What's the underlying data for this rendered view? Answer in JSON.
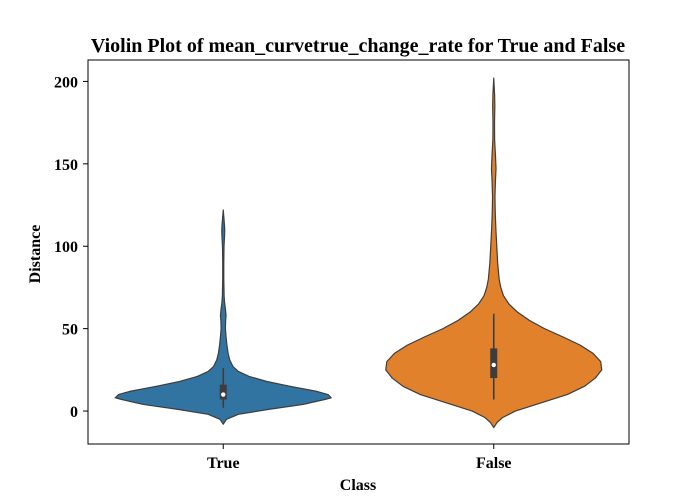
{
  "chart_data": {
    "type": "violin",
    "title": "Violin Plot of mean_curvetrue_change_rate for True and False",
    "xlabel": "Class",
    "ylabel": "Distance",
    "categories": [
      "True",
      "False"
    ],
    "ylim": [
      -20,
      213
    ],
    "yticks": [
      0,
      50,
      100,
      150,
      200
    ],
    "grid": false,
    "series": [
      {
        "name": "True",
        "color": "#3274a1",
        "min": 2,
        "q1": 7,
        "median": 10,
        "q3": 16,
        "max": 26,
        "density": [
          [
            -8,
            0.0
          ],
          [
            -5,
            0.03
          ],
          [
            -2,
            0.14
          ],
          [
            1,
            0.42
          ],
          [
            4,
            0.74
          ],
          [
            7,
            0.94
          ],
          [
            8,
            1.0
          ],
          [
            10,
            0.97
          ],
          [
            12,
            0.86
          ],
          [
            15,
            0.62
          ],
          [
            18,
            0.4
          ],
          [
            21,
            0.24
          ],
          [
            24,
            0.14
          ],
          [
            27,
            0.09
          ],
          [
            31,
            0.06
          ],
          [
            35,
            0.045
          ],
          [
            40,
            0.034
          ],
          [
            45,
            0.026
          ],
          [
            50,
            0.02
          ],
          [
            55,
            0.022
          ],
          [
            58,
            0.026
          ],
          [
            62,
            0.02
          ],
          [
            66,
            0.012
          ],
          [
            70,
            0.008
          ],
          [
            80,
            0.005
          ],
          [
            90,
            0.005
          ],
          [
            100,
            0.007
          ],
          [
            106,
            0.012
          ],
          [
            110,
            0.014
          ],
          [
            114,
            0.01
          ],
          [
            118,
            0.005
          ],
          [
            122,
            0.0
          ]
        ]
      },
      {
        "name": "False",
        "color": "#e1812c",
        "min": 7,
        "q1": 20,
        "median": 28,
        "q3": 38,
        "max": 59,
        "density": [
          [
            -10,
            0.0
          ],
          [
            -7,
            0.03
          ],
          [
            -4,
            0.08
          ],
          [
            0,
            0.2
          ],
          [
            5,
            0.44
          ],
          [
            10,
            0.68
          ],
          [
            15,
            0.84
          ],
          [
            20,
            0.94
          ],
          [
            25,
            1.0
          ],
          [
            30,
            0.99
          ],
          [
            35,
            0.92
          ],
          [
            40,
            0.8
          ],
          [
            45,
            0.64
          ],
          [
            50,
            0.47
          ],
          [
            55,
            0.33
          ],
          [
            60,
            0.22
          ],
          [
            65,
            0.14
          ],
          [
            70,
            0.09
          ],
          [
            75,
            0.065
          ],
          [
            80,
            0.05
          ],
          [
            90,
            0.036
          ],
          [
            100,
            0.028
          ],
          [
            110,
            0.02
          ],
          [
            120,
            0.014
          ],
          [
            130,
            0.011
          ],
          [
            140,
            0.016
          ],
          [
            147,
            0.021
          ],
          [
            155,
            0.016
          ],
          [
            165,
            0.008
          ],
          [
            175,
            0.007
          ],
          [
            185,
            0.01
          ],
          [
            192,
            0.008
          ],
          [
            197,
            0.004
          ],
          [
            202,
            0.0
          ]
        ]
      }
    ]
  }
}
